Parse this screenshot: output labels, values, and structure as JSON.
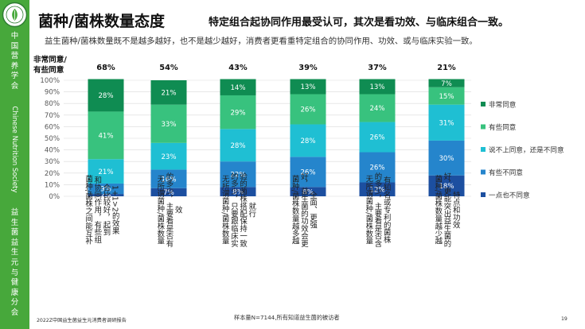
{
  "sidebar": {
    "logo_text": "中国营养学会",
    "org_cn": "中国营养学会",
    "org_en": "Chinese Nutrition Society",
    "branch_cn": "益生菌益生元与健康分会"
  },
  "header": {
    "title": "菌种/菌株数量态度",
    "title_suffix": "特定组合起协同作用最受认可，其次是看功效、与临床组合一致。",
    "subtitle": "益生菌种/菌株数量既不是越多越好，也不是越少越好，消费者更看重特定组合的协同作用、功效、或与临床实验一致。"
  },
  "top_label": [
    "非常同意/",
    "有些同意"
  ],
  "colors": {
    "sidebar": "#47a83b",
    "非常同意": "#0f8c52",
    "有些同意": "#38c27e",
    "说不上同意，还是不同意": "#1fbfd3",
    "有些不同意": "#2585cc",
    "一点也不同意": "#1c4fa0",
    "axis_text": "#595959",
    "grid": "#d9d9d9"
  },
  "chart_data": {
    "type": "bar",
    "stacked": true,
    "ylim": [
      0,
      100
    ],
    "yticks": [
      "0%",
      "10%",
      "20%",
      "30%",
      "40%",
      "50%",
      "60%",
      "70%",
      "80%",
      "90%",
      "100%"
    ],
    "top_totals": [
      "68%",
      "54%",
      "43%",
      "39%",
      "37%",
      "21%"
    ],
    "categories": [
      "菌种/菌株之间能互补和协同作用，有些组合比较好，起到1+1>2的效果",
      "无所谓菌种/菌株数量的多少，主要看是否有效",
      "无所谓菌种/菌株数量的多少，只要跟临床实验的菌株搭配保持一致就行",
      "菌种/菌株数量越多越好，益生菌的功效会更全面、更强",
      "无所谓菌种/菌株数量的多少，主要看是否含有知名或专利的菌株",
      "菌种/菌株数量越少越好，更能突出益生菌的特点和功效"
    ],
    "category_lines": [
      [
        "和协同作用，有些组",
        "合比较好，起到",
        "1+1>2的效果"
      ],
      [
        "无所谓菌种/菌株数量",
        "的多少，主要看是否有",
        "效"
      ],
      [
        "无所谓菌种/菌株数量",
        "的多少，只要跟临床实",
        "验的菌株搭配保持一致",
        "就行"
      ],
      [
        "好，益生菌的功效会更",
        "全面、更强"
      ],
      [
        "无所谓菌种/菌株数量",
        "的多少，主要看是否含",
        "有知名或专利的菌株"
      ],
      [
        "菌种/菌株数量越少越",
        "好，更能突出益生菌的",
        "特点和功效"
      ]
    ],
    "category_top": [
      "菌种/菌株之间能互补",
      "",
      "",
      "菌种/菌株数量越多越",
      "",
      ""
    ],
    "series": [
      {
        "name": "一点也不同意",
        "values": [
          2,
          7,
          8,
          8,
          12,
          18
        ],
        "labels": [
          "2%",
          "7%",
          "8%",
          "8%",
          "12%",
          "18%"
        ]
      },
      {
        "name": "有些不同意",
        "values": [
          9,
          16,
          22,
          26,
          26,
          30
        ],
        "labels": [
          "9%",
          "16%",
          "22%",
          "26%",
          "26%",
          "30%"
        ]
      },
      {
        "name": "说不上同意，还是不同意",
        "values": [
          21,
          23,
          28,
          28,
          26,
          31
        ],
        "labels": [
          "21%",
          "23%",
          "28%",
          "28%",
          "26%",
          "31%"
        ]
      },
      {
        "name": "有些同意",
        "values": [
          41,
          33,
          29,
          26,
          24,
          15
        ],
        "labels": [
          "41%",
          "33%",
          "29%",
          "26%",
          "24%",
          "15%"
        ]
      },
      {
        "name": "非常同意",
        "values": [
          28,
          21,
          14,
          13,
          13,
          7
        ],
        "labels": [
          "28%",
          "21%",
          "14%",
          "13%",
          "13%",
          "7%"
        ]
      }
    ],
    "legend": [
      "非常同意",
      "有些同意",
      "说不上同意，还是不同意",
      "有些不同意",
      "一点也不同意"
    ],
    "legend_position": "right"
  },
  "footer": {
    "report": "2022Z中国益生菌益生元消费者调研报告",
    "sample": "样本量N=7144,所有知道益生菌的被访者",
    "page": "19"
  }
}
